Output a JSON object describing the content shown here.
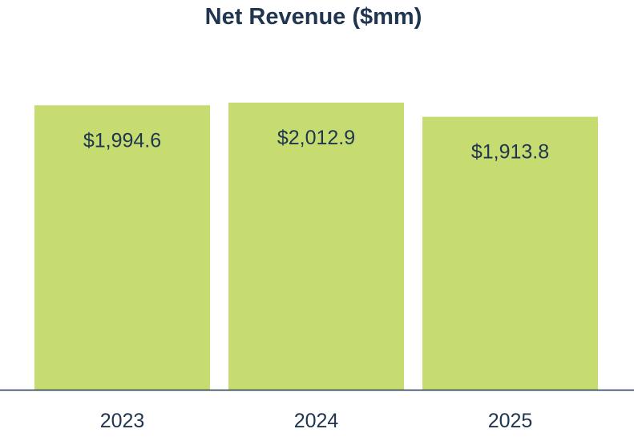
{
  "chart_data": {
    "type": "bar",
    "title": "Net Revenue ($mm)",
    "xlabel": "",
    "ylabel": "",
    "categories": [
      "2023",
      "2024",
      "2025"
    ],
    "values": [
      1994.6,
      2012.9,
      1913.8
    ],
    "data_labels": [
      "$1,994.6",
      "$2,012.9",
      "$1,913.8"
    ],
    "ylim": [
      0,
      2012.9
    ],
    "grid": false,
    "legend": "none",
    "colors": {
      "bar": "#c6dc70",
      "title": "#1f3550",
      "text": "#1f3550",
      "axis": "#1f3550"
    }
  }
}
